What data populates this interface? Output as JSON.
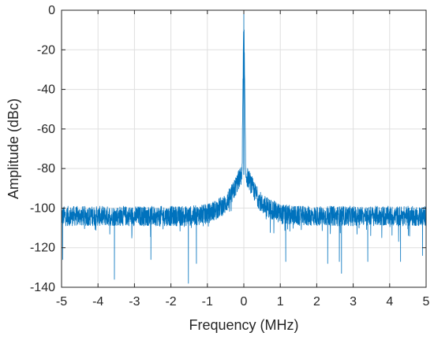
{
  "chart_data": {
    "type": "line",
    "title": "",
    "xlabel": "Frequency (MHz)",
    "ylabel": "Amplitude (dBc)",
    "xlim": [
      -5,
      5
    ],
    "ylim": [
      -140,
      0
    ],
    "x_ticks": [
      -5,
      -4,
      -3,
      -2,
      -1,
      0,
      1,
      2,
      3,
      4,
      5
    ],
    "y_ticks": [
      0,
      -20,
      -40,
      -60,
      -80,
      -100,
      -120,
      -140
    ],
    "grid": true,
    "series": [
      {
        "color": "#0072BD",
        "x": [
          -5,
          -4.5,
          -4,
          -3.5,
          -3,
          -2.5,
          -2,
          -1.5,
          -1,
          -0.5,
          -0.3,
          -0.15,
          -0.05,
          0,
          0.05,
          0.15,
          0.3,
          0.5,
          1,
          1.5,
          2,
          2.5,
          3,
          3.5,
          4,
          4.5,
          5
        ],
        "y": [
          -104,
          -104,
          -104,
          -104,
          -104,
          -104,
          -104,
          -104,
          -103,
          -98,
          -92,
          -86,
          -83,
          0,
          -83,
          -86,
          -92,
          -98,
          -103,
          -104,
          -104,
          -104,
          -104,
          -104,
          -104,
          -104,
          -104
        ],
        "spread_db": 5,
        "dips": [
          {
            "x": -4.97,
            "y": -126
          },
          {
            "x": -3.55,
            "y": -136
          },
          {
            "x": -2.55,
            "y": -126
          },
          {
            "x": -1.52,
            "y": -138
          },
          {
            "x": -1.3,
            "y": -128
          },
          {
            "x": 1.15,
            "y": -127
          },
          {
            "x": 2.3,
            "y": -128
          },
          {
            "x": 2.62,
            "y": -127
          },
          {
            "x": 2.68,
            "y": -133
          },
          {
            "x": 3.4,
            "y": -127
          },
          {
            "x": 4.3,
            "y": -127
          },
          {
            "x": 4.9,
            "y": -124
          }
        ]
      }
    ]
  }
}
